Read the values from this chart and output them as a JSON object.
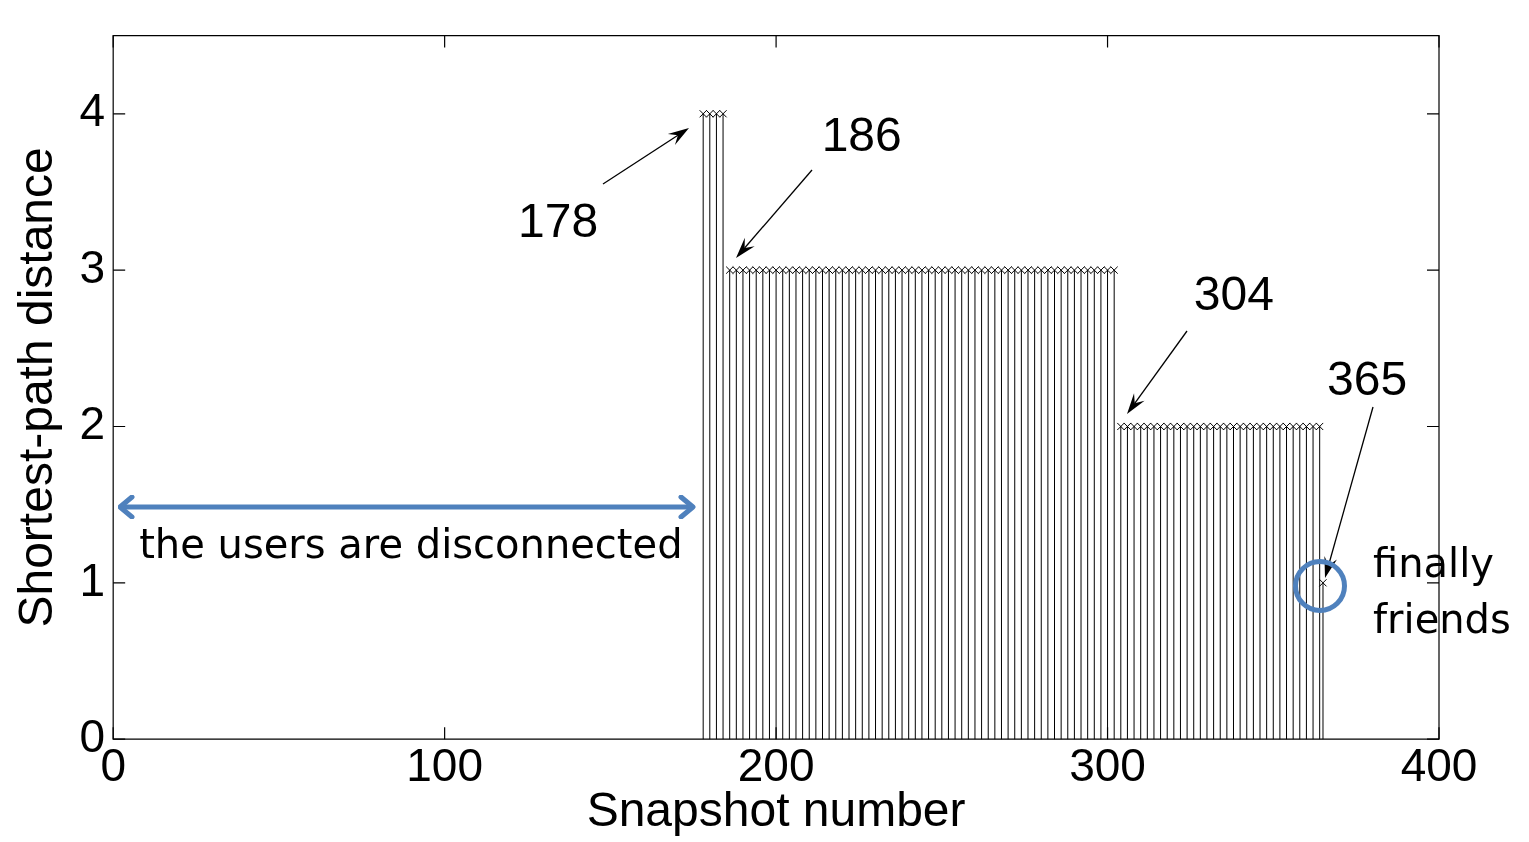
{
  "chart_data": {
    "type": "lollipop",
    "xlabel": "Snapshot number",
    "ylabel": "Shortest-path distance",
    "xlim": [
      0,
      400
    ],
    "xticks": [
      0,
      100,
      200,
      300,
      400
    ],
    "ylim": [
      0,
      4.5
    ],
    "yticks": [
      0,
      1,
      2,
      3,
      4
    ],
    "marker": "cross",
    "grid": false,
    "legend": false,
    "series": [
      {
        "color": "#000000",
        "x": [
          178,
          180,
          182,
          184,
          186,
          188,
          190,
          192,
          194,
          196,
          198,
          200,
          202,
          204,
          206,
          208,
          210,
          212,
          214,
          216,
          218,
          220,
          222,
          224,
          226,
          228,
          230,
          232,
          234,
          236,
          238,
          240,
          242,
          244,
          246,
          248,
          250,
          252,
          254,
          256,
          258,
          260,
          262,
          264,
          266,
          268,
          270,
          272,
          274,
          276,
          278,
          280,
          282,
          284,
          286,
          288,
          290,
          292,
          294,
          296,
          298,
          300,
          302,
          304,
          306,
          308,
          310,
          312,
          314,
          316,
          318,
          320,
          322,
          324,
          326,
          328,
          330,
          332,
          334,
          336,
          338,
          340,
          342,
          344,
          346,
          348,
          350,
          352,
          354,
          356,
          358,
          360,
          362,
          364,
          365
        ],
        "values": [
          4,
          4,
          4,
          4,
          3,
          3,
          3,
          3,
          3,
          3,
          3,
          3,
          3,
          3,
          3,
          3,
          3,
          3,
          3,
          3,
          3,
          3,
          3,
          3,
          3,
          3,
          3,
          3,
          3,
          3,
          3,
          3,
          3,
          3,
          3,
          3,
          3,
          3,
          3,
          3,
          3,
          3,
          3,
          3,
          3,
          3,
          3,
          3,
          3,
          3,
          3,
          3,
          3,
          3,
          3,
          3,
          3,
          3,
          3,
          3,
          3,
          3,
          3,
          2,
          2,
          2,
          2,
          2,
          2,
          2,
          2,
          2,
          2,
          2,
          2,
          2,
          2,
          2,
          2,
          2,
          2,
          2,
          2,
          2,
          2,
          2,
          2,
          2,
          2,
          2,
          2,
          2,
          2,
          2,
          1
        ]
      }
    ],
    "annotations": [
      {
        "text": "178",
        "x": 178,
        "y": 4
      },
      {
        "text": "186",
        "x": 186,
        "y": 3
      },
      {
        "text": "304",
        "x": 304,
        "y": 2
      },
      "the users are disconnected",
      "365",
      "finally\nfriends"
    ]
  }
}
